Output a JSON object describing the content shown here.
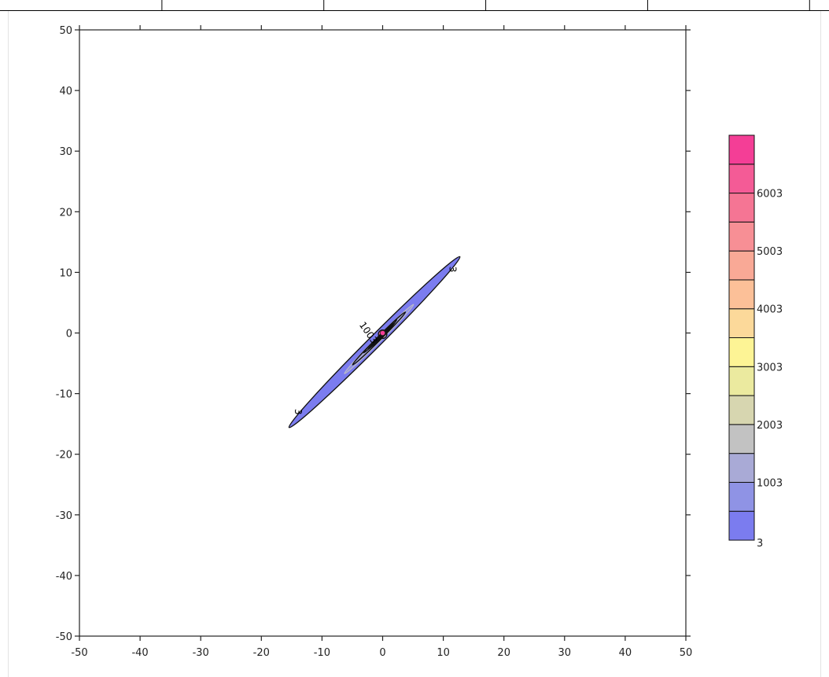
{
  "header_strip": {
    "cells": 5
  },
  "chart_data": {
    "type": "contour",
    "title": "",
    "xlabel": "",
    "ylabel": "",
    "xlim": [
      -50,
      50
    ],
    "ylim": [
      -50,
      50
    ],
    "x_ticks": [
      -50,
      -40,
      -30,
      -20,
      -10,
      0,
      10,
      20,
      30,
      40,
      50
    ],
    "y_ticks": [
      -50,
      -40,
      -30,
      -20,
      -10,
      0,
      10,
      20,
      30,
      40,
      50
    ],
    "grid": false,
    "peak": {
      "x": 0,
      "y": 0,
      "value": 6503
    },
    "ellipse_orientation_deg": 45,
    "levels": [
      3,
      503,
      1003,
      1503,
      2003,
      2503,
      3003,
      3503,
      4003,
      4503,
      5003,
      5503,
      6003,
      6503
    ],
    "level_colors": [
      "#7b7cef",
      "#8f93e5",
      "#a9aad6",
      "#c2c2c2",
      "#d7d6b0",
      "#ebea9f",
      "#fdf495",
      "#fcd99a",
      "#fcc098",
      "#f9a996",
      "#f78f95",
      "#f57594",
      "#f45b96",
      "#f43e96"
    ],
    "contours": [
      {
        "level": 3,
        "x_extent": [
          -14.5,
          11.8
        ],
        "y_extent": [
          -16.5,
          13.5
        ]
      },
      {
        "level": 503,
        "x_extent": [
          -6.0,
          4.8
        ],
        "y_extent": [
          -7.0,
          5.0
        ]
      },
      {
        "level": 1003,
        "x_extent": [
          -4.6,
          3.4
        ],
        "y_extent": [
          -5.6,
          3.8
        ]
      },
      {
        "level": 1503,
        "x_extent": [
          -2.9,
          2.1
        ],
        "y_extent": [
          -3.5,
          2.4
        ]
      },
      {
        "level": 2003,
        "x_extent": [
          -2.3,
          1.9
        ],
        "y_extent": [
          -2.9,
          1.9
        ]
      },
      {
        "level": 2503,
        "x_extent": [
          -1.9,
          1.7
        ],
        "y_extent": [
          -2.4,
          1.4
        ]
      },
      {
        "level": 3003,
        "x_extent": [
          -1.6,
          1.4
        ],
        "y_extent": [
          -2.0,
          1.1
        ]
      },
      {
        "level": 4503,
        "x_extent": [
          -0.9,
          0.9
        ],
        "y_extent": [
          -1.2,
          0.6
        ]
      },
      {
        "level": 5503,
        "x_extent": [
          -0.7,
          0.7
        ],
        "y_extent": [
          -0.9,
          0.5
        ]
      }
    ],
    "contour_labels": [
      {
        "text": "3",
        "x": 11.5,
        "y": 10.5
      },
      {
        "text": "3",
        "x": -14.0,
        "y": -13.0
      },
      {
        "text": "1003",
        "x": -2.4,
        "y": 0.0
      }
    ],
    "legend": {
      "position": "right",
      "labels": [
        "3",
        "1003",
        "2003",
        "3003",
        "4003",
        "5003",
        "6003"
      ]
    }
  }
}
